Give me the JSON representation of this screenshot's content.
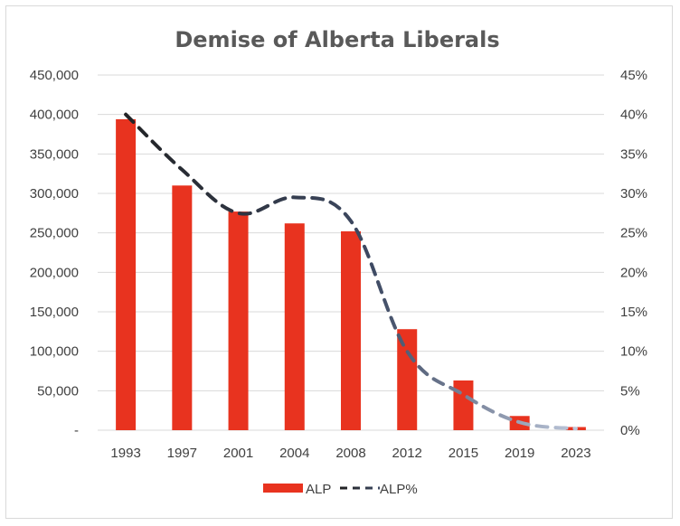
{
  "chart_data": {
    "type": "bar",
    "title": "Demise of Alberta Liberals",
    "categories": [
      "1993",
      "1997",
      "2001",
      "2004",
      "2008",
      "2012",
      "2015",
      "2019",
      "2023"
    ],
    "series": [
      {
        "name": "ALP",
        "type": "bar",
        "axis": "left",
        "color": "#e8331f",
        "values": [
          394000,
          310000,
          277000,
          262000,
          252000,
          128000,
          63000,
          18000,
          4000
        ]
      },
      {
        "name": "ALP%",
        "type": "line",
        "axis": "right",
        "style": "dashed",
        "color_start": "#1f1f1f",
        "color_end": "#c9d3e6",
        "values": [
          0.4,
          0.33,
          0.275,
          0.295,
          0.265,
          0.1,
          0.045,
          0.01,
          0.002
        ]
      }
    ],
    "y_left": {
      "lim": [
        0,
        450000
      ],
      "ticks": [
        "-",
        "50,000",
        "100,000",
        "150,000",
        "200,000",
        "250,000",
        "300,000",
        "350,000",
        "400,000",
        "450,000"
      ]
    },
    "y_right": {
      "lim": [
        0,
        0.45
      ],
      "ticks": [
        "0%",
        "5%",
        "10%",
        "15%",
        "20%",
        "25%",
        "30%",
        "35%",
        "40%",
        "45%"
      ]
    },
    "grid": true,
    "legend": {
      "position": "bottom",
      "entries": [
        "ALP",
        "ALP%"
      ]
    }
  }
}
